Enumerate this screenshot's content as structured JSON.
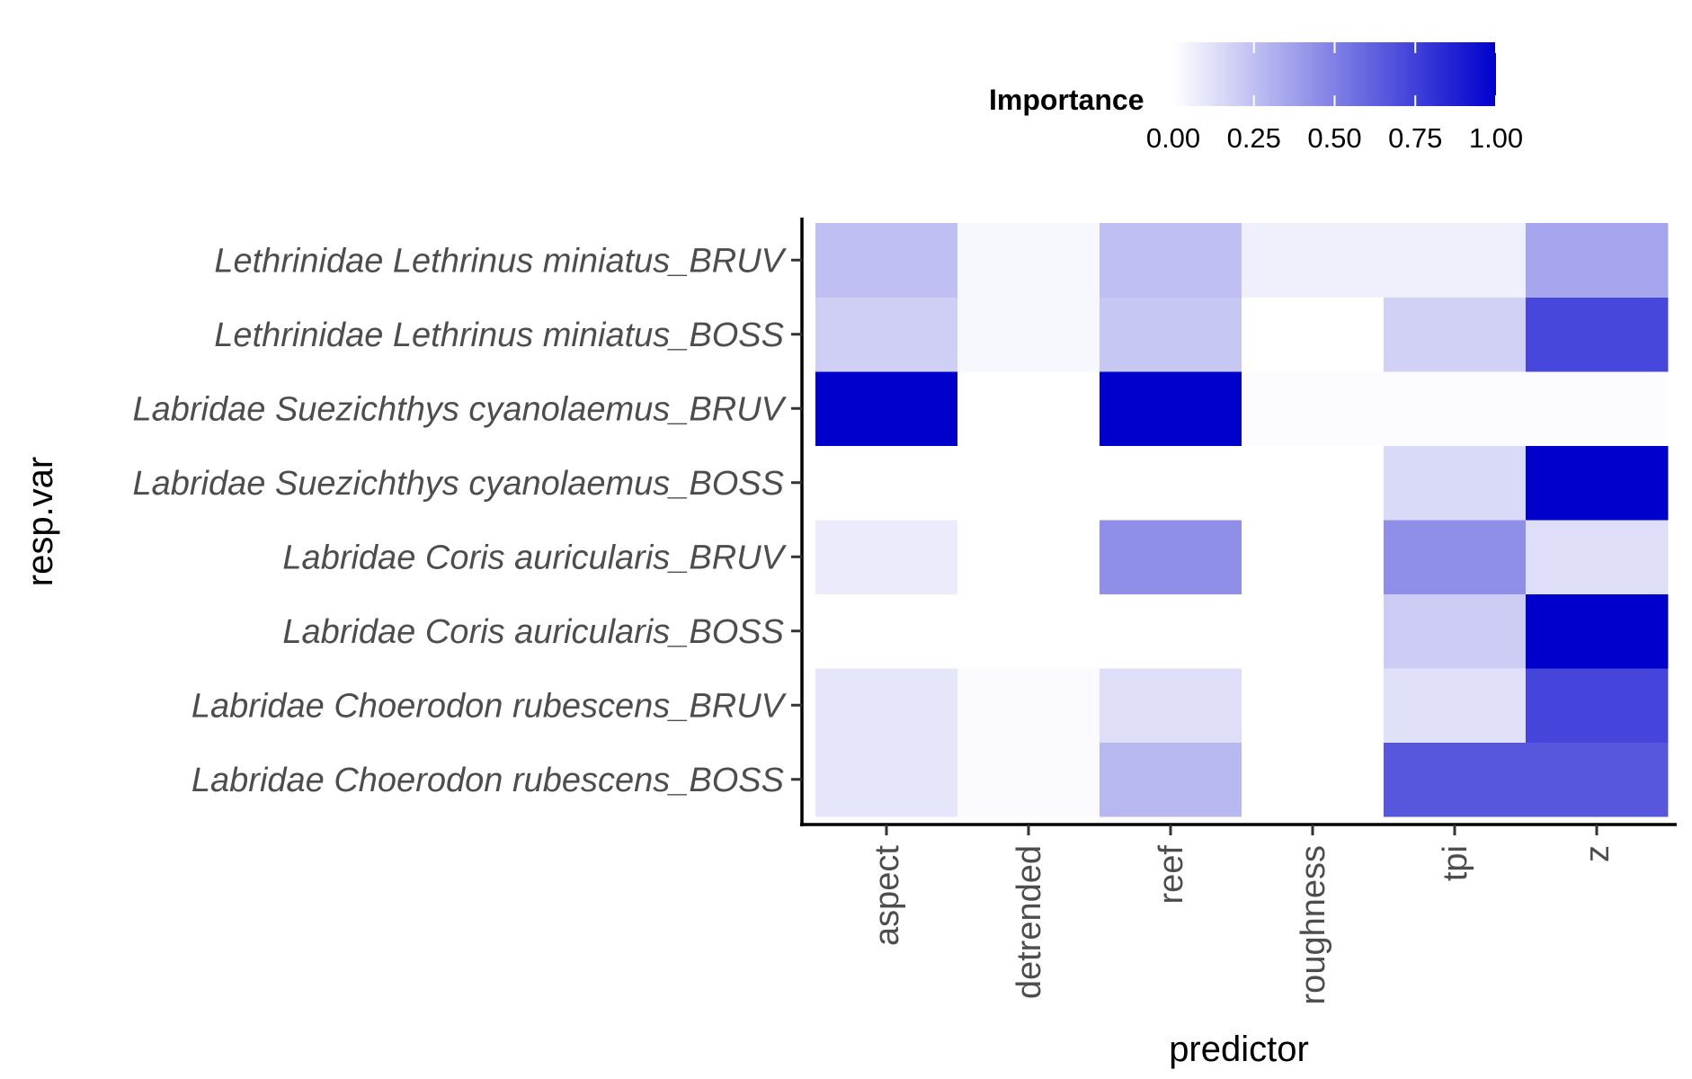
{
  "chart_data": {
    "type": "heatmap",
    "xlabel": "predictor",
    "ylabel": "resp.var",
    "x_categories": [
      "aspect",
      "detrended",
      "reef",
      "roughness",
      "tpi",
      "z"
    ],
    "y_categories": [
      "Labridae Choerodon rubescens_BOSS",
      "Labridae Choerodon rubescens_BRUV",
      "Labridae Coris auricularis_BOSS",
      "Labridae Coris auricularis_BRUV",
      "Labridae Suezichthys cyanolaemus_BOSS",
      "Labridae Suezichthys cyanolaemus_BRUV",
      "Lethrinidae Lethrinus miniatus_BOSS",
      "Lethrinidae Lethrinus miniatus_BRUV"
    ],
    "values": [
      [
        0.1,
        0.02,
        0.28,
        0.0,
        0.66,
        0.66
      ],
      [
        0.1,
        0.02,
        0.13,
        0.0,
        0.12,
        0.73
      ],
      [
        0.0,
        0.0,
        0.0,
        0.0,
        0.2,
        1.0
      ],
      [
        0.08,
        0.0,
        0.44,
        0.0,
        0.44,
        0.13
      ],
      [
        0.0,
        0.0,
        0.0,
        0.0,
        0.15,
        1.0
      ],
      [
        1.0,
        0.0,
        1.0,
        0.01,
        0.01,
        0.01
      ],
      [
        0.19,
        0.03,
        0.22,
        0.0,
        0.18,
        0.72
      ],
      [
        0.25,
        0.03,
        0.25,
        0.06,
        0.06,
        0.35
      ]
    ],
    "legend": {
      "title": "Importance",
      "ticks": [
        "0.00",
        "0.25",
        "0.50",
        "0.75",
        "1.00"
      ],
      "tick_values": [
        0,
        0.25,
        0.5,
        0.75,
        1.0
      ],
      "low_color": "#ffffff",
      "high_color": "#0000cd",
      "placement": "top"
    },
    "grid": false
  }
}
